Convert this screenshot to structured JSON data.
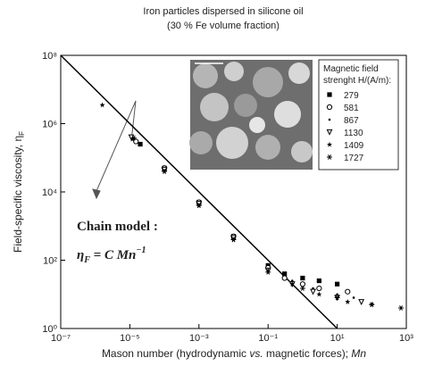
{
  "chart_data": {
    "type": "scatter",
    "title": "Iron particles dispersed in silicone oil",
    "subtitle": "(30 % Fe volume fraction)",
    "y_label": [
      "Field-specific viscosity, η",
      "F"
    ],
    "x_label": [
      "Mason number (hydrodynamic ",
      "vs.",
      " magnetic forces); ",
      "Mn"
    ],
    "log_x": true,
    "log_y": true,
    "xlim": [
      1e-07,
      1000
    ],
    "ylim": [
      1,
      100000000
    ],
    "xticks": [
      {
        "value": 1e-07,
        "label": "10⁻⁷"
      },
      {
        "value": 1e-05,
        "label": "10⁻⁵"
      },
      {
        "value": 0.001,
        "label": "10⁻³"
      },
      {
        "value": 0.1,
        "label": "10⁻¹"
      },
      {
        "value": 10,
        "label": "10¹"
      },
      {
        "value": 1000,
        "label": "10³"
      }
    ],
    "yticks": [
      {
        "value": 1,
        "label": "10⁰"
      },
      {
        "value": 100,
        "label": "10²"
      },
      {
        "value": 10000,
        "label": "10⁴"
      },
      {
        "value": 1000000,
        "label": "10⁶"
      },
      {
        "value": 100000000,
        "label": "10⁸"
      }
    ],
    "legend_title": [
      "Magnetic field",
      "strenght H/(A/m):"
    ],
    "legend_position": "upper right",
    "model_line": {
      "x": [
        1e-07,
        10
      ],
      "values": [
        100000000,
        1
      ],
      "color": "#000000"
    },
    "annotation": "Chain model :",
    "formula": [
      "η",
      "F",
      " = C Mn",
      "−1"
    ],
    "series": [
      {
        "name": "279",
        "marker": "square",
        "color": "#000000",
        "x": [
          2e-05,
          0.0001,
          0.001,
          0.01,
          0.1,
          0.3,
          1,
          3,
          10
        ],
        "values": [
          250000,
          50000,
          5000,
          500,
          70,
          40,
          30,
          25,
          20
        ]
      },
      {
        "name": "581",
        "marker": "circle",
        "color": "#000000",
        "x": [
          1.5e-05,
          0.0001,
          0.001,
          0.01,
          0.1,
          0.3,
          1,
          3,
          20
        ],
        "values": [
          300000,
          50000,
          5000,
          500,
          60,
          30,
          20,
          15,
          12
        ]
      },
      {
        "name": "867",
        "marker": "dot",
        "color": "#000000",
        "x": [
          1.2e-05,
          0.0001,
          0.001,
          0.01,
          0.1,
          0.5,
          2,
          10,
          30
        ],
        "values": [
          350000,
          45000,
          4500,
          450,
          55,
          25,
          15,
          10,
          8
        ]
      },
      {
        "name": "1130",
        "marker": "triangle",
        "color": "#000000",
        "x": [
          1.1e-05,
          0.0001,
          0.001,
          0.01,
          0.1,
          0.5,
          2,
          10,
          50
        ],
        "values": [
          400000,
          45000,
          4500,
          450,
          50,
          20,
          12,
          8,
          6
        ]
      },
      {
        "name": "1409",
        "marker": "star",
        "color": "#000000",
        "x": [
          1.6e-06,
          1.2e-05,
          0.0001,
          0.001,
          0.01,
          0.1,
          0.5,
          3,
          20,
          100
        ],
        "values": [
          3500000,
          350000,
          40000,
          4000,
          400,
          50,
          20,
          10,
          6,
          5
        ]
      },
      {
        "name": "1727",
        "marker": "asterisk",
        "color": "#000000",
        "x": [
          1.3e-05,
          0.0001,
          0.001,
          0.01,
          0.1,
          1,
          10,
          100,
          700
        ],
        "values": [
          380000,
          40000,
          4000,
          400,
          45,
          15,
          8,
          5,
          4
        ]
      }
    ]
  }
}
